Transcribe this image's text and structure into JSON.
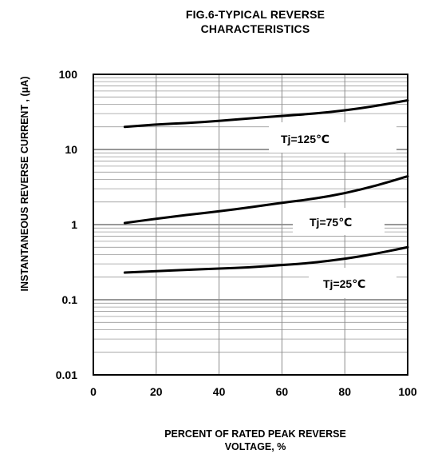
{
  "chart_data": {
    "type": "line",
    "title_lines": [
      "FIG.6-TYPICAL REVERSE",
      "CHARACTERISTICS"
    ],
    "xlabel_lines": [
      "PERCENT OF RATED PEAK REVERSE",
      "VOLTAGE, %"
    ],
    "ylabel": "INSTANTANEOUS REVERSE CURRENT , (μA)",
    "x_scale": "linear",
    "y_scale": "log",
    "xlim": [
      0,
      100
    ],
    "ylim": [
      0.01,
      100
    ],
    "x_ticks": [
      "0",
      "20",
      "40",
      "60",
      "80",
      "100"
    ],
    "y_ticks": [
      "0.01",
      "0.1",
      "1",
      "10",
      "100"
    ],
    "grid": true,
    "series": [
      {
        "name": "Tj=125℃",
        "x": [
          10,
          20,
          30,
          40,
          50,
          60,
          70,
          80,
          90,
          100
        ],
        "y": [
          20,
          21.5,
          22.5,
          24,
          26,
          28,
          30,
          33,
          38,
          45
        ]
      },
      {
        "name": "Tj=75℃",
        "x": [
          10,
          20,
          30,
          40,
          50,
          60,
          70,
          80,
          90,
          100
        ],
        "y": [
          1.05,
          1.2,
          1.35,
          1.5,
          1.7,
          1.95,
          2.2,
          2.6,
          3.3,
          4.4
        ]
      },
      {
        "name": "Tj=25℃",
        "x": [
          10,
          20,
          30,
          40,
          50,
          60,
          70,
          80,
          90,
          100
        ],
        "y": [
          0.23,
          0.24,
          0.25,
          0.26,
          0.27,
          0.29,
          0.31,
          0.35,
          0.41,
          0.5
        ]
      }
    ]
  }
}
